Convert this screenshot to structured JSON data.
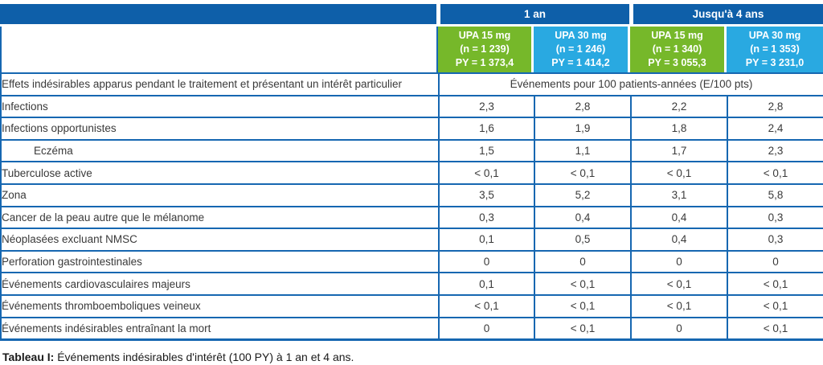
{
  "colors": {
    "dark_blue": "#0e5fa9",
    "green": "#76b82a",
    "cyan": "#29a9e1",
    "border_blue": "#1667b1"
  },
  "table": {
    "top_header": {
      "one_year": "1 an",
      "four_years": "Jusqu'à 4 ans"
    },
    "dose_columns": [
      {
        "title": "UPA 15 mg",
        "n": "(n = 1 239)",
        "py": "PY = 1 373,4",
        "color_key": "green"
      },
      {
        "title": "UPA 30 mg",
        "n": "(n = 1 246)",
        "py": "PY = 1 414,2",
        "color_key": "cyan"
      },
      {
        "title": "UPA 15 mg",
        "n": "(n = 1 340)",
        "py": "PY = 3 055,3",
        "color_key": "green"
      },
      {
        "title": "UPA 30 mg",
        "n": "(n = 1 353)",
        "py": "PY = 3 231,0",
        "color_key": "cyan"
      }
    ],
    "subheader": {
      "label": "Effets indésirables apparus pendant le traitement et présentant un intérêt particulier",
      "value": "Événements pour 100 patients-années (E/100 pts)"
    },
    "rows": [
      {
        "label": "Infections",
        "indent": false,
        "values": [
          "2,3",
          "2,8",
          "2,2",
          "2,8"
        ]
      },
      {
        "label": "Infections opportunistes",
        "indent": false,
        "values": [
          "1,6",
          "1,9",
          "1,8",
          "2,4"
        ]
      },
      {
        "label": "Eczéma",
        "indent": true,
        "values": [
          "1,5",
          "1,1",
          "1,7",
          "2,3"
        ]
      },
      {
        "label": "Tuberculose active",
        "indent": false,
        "values": [
          "< 0,1",
          "< 0,1",
          "< 0,1",
          "< 0,1"
        ]
      },
      {
        "label": "Zona",
        "indent": false,
        "values": [
          "3,5",
          "5,2",
          "3,1",
          "5,8"
        ]
      },
      {
        "label": "Cancer de la peau autre que le mélanome",
        "indent": false,
        "values": [
          "0,3",
          "0,4",
          "0,4",
          "0,3"
        ]
      },
      {
        "label": "Néoplasées excluant NMSC",
        "indent": false,
        "values": [
          "0,1",
          "0,5",
          "0,4",
          "0,3"
        ]
      },
      {
        "label": "Perforation gastrointestinales",
        "indent": false,
        "values": [
          "0",
          "0",
          "0",
          "0"
        ]
      },
      {
        "label": "Événements cardiovasculaires majeurs",
        "indent": false,
        "values": [
          "0,1",
          "< 0,1",
          "< 0,1",
          "< 0,1"
        ]
      },
      {
        "label": "Événements thromboemboliques veineux",
        "indent": false,
        "values": [
          "< 0,1",
          "< 0,1",
          "< 0,1",
          "< 0,1"
        ]
      },
      {
        "label": "Événements indésirables entraînant la mort",
        "indent": false,
        "values": [
          "0",
          "< 0,1",
          "0",
          "< 0,1"
        ]
      }
    ]
  },
  "caption": {
    "prefix": "Tableau I:",
    "text": " Événements indésirables d'intérêt (100 PY) à 1 an et 4 ans."
  }
}
